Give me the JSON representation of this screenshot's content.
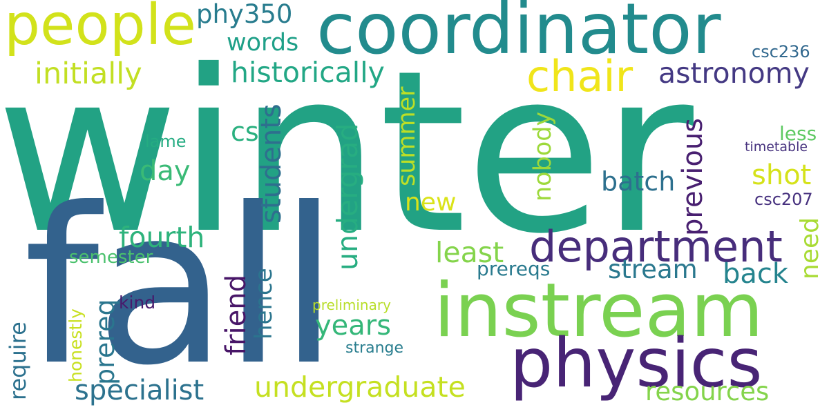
{
  "words": [
    {
      "text": "winter",
      "color": "#22a284"
    },
    {
      "text": "fall",
      "color": "#33628d"
    },
    {
      "text": "instream",
      "color": "#7ad151"
    },
    {
      "text": "coordinator",
      "color": "#228b8d"
    },
    {
      "text": "people",
      "color": "#d2e21b"
    },
    {
      "text": "physics",
      "color": "#482475"
    },
    {
      "text": "department",
      "color": "#472d7b"
    },
    {
      "text": "chair",
      "color": "#f0e51a"
    },
    {
      "text": "astronomy",
      "color": "#443983"
    },
    {
      "text": "historically",
      "color": "#22a785"
    },
    {
      "text": "initially",
      "color": "#c2df23"
    },
    {
      "text": "phy350",
      "color": "#287c8e"
    },
    {
      "text": "words",
      "color": "#1fa088"
    },
    {
      "text": "csc236",
      "color": "#31688e"
    },
    {
      "text": "students",
      "color": "#2e6f8e"
    },
    {
      "text": "cs",
      "color": "#2ab07f"
    },
    {
      "text": "undergrad",
      "color": "#27ad81"
    },
    {
      "text": "summer",
      "color": "#bddf26"
    },
    {
      "text": "nobody",
      "color": "#9dd93b"
    },
    {
      "text": "previous",
      "color": "#481f70"
    },
    {
      "text": "less",
      "color": "#5ec962"
    },
    {
      "text": "timetable",
      "color": "#46327e"
    },
    {
      "text": "lame",
      "color": "#25ac82"
    },
    {
      "text": "day",
      "color": "#3aba76"
    },
    {
      "text": "shot",
      "color": "#d5e21a"
    },
    {
      "text": "batch",
      "color": "#2d708e"
    },
    {
      "text": "csc207",
      "color": "#46307e"
    },
    {
      "text": "new",
      "color": "#dae319"
    },
    {
      "text": "fourth",
      "color": "#2eb37c"
    },
    {
      "text": "need",
      "color": "#a8db34"
    },
    {
      "text": "least",
      "color": "#84d44b"
    },
    {
      "text": "semester",
      "color": "#4ac16d"
    },
    {
      "text": "friend",
      "color": "#481668"
    },
    {
      "text": "hence",
      "color": "#2b758e"
    },
    {
      "text": "prereqs",
      "color": "#297a8e"
    },
    {
      "text": "stream",
      "color": "#2a788e"
    },
    {
      "text": "back",
      "color": "#25848e"
    },
    {
      "text": "require",
      "color": "#2c718e"
    },
    {
      "text": "prereq",
      "color": "#2a768e"
    },
    {
      "text": "honestly",
      "color": "#c8e020"
    },
    {
      "text": "kind",
      "color": "#481a6c"
    },
    {
      "text": "preliminary",
      "color": "#b8de29"
    },
    {
      "text": "years",
      "color": "#35b779"
    },
    {
      "text": "strange",
      "color": "#287d8e"
    },
    {
      "text": "specialist",
      "color": "#2c728e"
    },
    {
      "text": "undergraduate",
      "color": "#c5e021"
    },
    {
      "text": "resources",
      "color": "#84d44b"
    }
  ]
}
